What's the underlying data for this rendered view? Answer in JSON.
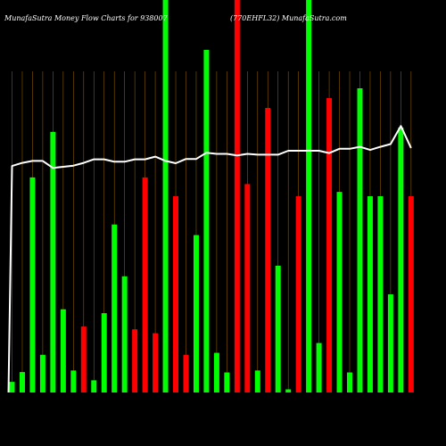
{
  "header": {
    "title_left": "MunafaSutra  Money Flow  Charts for 938007",
    "title_right": "(770EHFL32) MunafaSutra.com"
  },
  "colors": {
    "background": "#000000",
    "grid": "#8a5a00",
    "up": "#00ff00",
    "down": "#ff0000",
    "line": "#ffffff"
  },
  "chart_data": {
    "type": "bar",
    "title": "MunafaSutra  Money Flow  Charts for 938007",
    "ylim": [
      0,
      100
    ],
    "grid": true,
    "categories": [
      "",
      "",
      "",
      "",
      "",
      "",
      "",
      "",
      "",
      "",
      "",
      "",
      "",
      "",
      "",
      "",
      "",
      "",
      "",
      "",
      "",
      "",
      "",
      "",
      "",
      "",
      "",
      "",
      "",
      "",
      "",
      "",
      "",
      "",
      "",
      "",
      "",
      "",
      "",
      ""
    ],
    "bars": [
      {
        "value": 2.7,
        "color": "up"
      },
      {
        "value": 5.2,
        "color": "up"
      },
      {
        "value": 54.8,
        "color": "up"
      },
      {
        "value": 9.6,
        "color": "up"
      },
      {
        "value": 66.4,
        "color": "up"
      },
      {
        "value": 21.2,
        "color": "up"
      },
      {
        "value": 5.6,
        "color": "up"
      },
      {
        "value": 16.8,
        "color": "down"
      },
      {
        "value": 3.1,
        "color": "up"
      },
      {
        "value": 20.2,
        "color": "up"
      },
      {
        "value": 42.8,
        "color": "up"
      },
      {
        "value": 29.6,
        "color": "up"
      },
      {
        "value": 16.1,
        "color": "down"
      },
      {
        "value": 54.8,
        "color": "down"
      },
      {
        "value": 15.1,
        "color": "down"
      },
      {
        "value": 100,
        "color": "up"
      },
      {
        "value": 50.0,
        "color": "down"
      },
      {
        "value": 9.6,
        "color": "down"
      },
      {
        "value": 40.1,
        "color": "up"
      },
      {
        "value": 87.3,
        "color": "up"
      },
      {
        "value": 10.1,
        "color": "up"
      },
      {
        "value": 5.1,
        "color": "up"
      },
      {
        "value": 100,
        "color": "down"
      },
      {
        "value": 53.1,
        "color": "down"
      },
      {
        "value": 5.6,
        "color": "up"
      },
      {
        "value": 72.5,
        "color": "down"
      },
      {
        "value": 32.3,
        "color": "up"
      },
      {
        "value": 0.8,
        "color": "up"
      },
      {
        "value": 50.0,
        "color": "down"
      },
      {
        "value": 100,
        "color": "up"
      },
      {
        "value": 12.6,
        "color": "up"
      },
      {
        "value": 75.0,
        "color": "down"
      },
      {
        "value": 51.1,
        "color": "up"
      },
      {
        "value": 5.1,
        "color": "up"
      },
      {
        "value": 77.5,
        "color": "up"
      },
      {
        "value": 50.0,
        "color": "up"
      },
      {
        "value": 50.0,
        "color": "up"
      },
      {
        "value": 25.0,
        "color": "up"
      },
      {
        "value": 67.5,
        "color": "up"
      },
      {
        "value": 50.0,
        "color": "down"
      }
    ],
    "line": [
      57.7,
      58.5,
      59.0,
      59.0,
      57.2,
      57.5,
      57.8,
      58.5,
      59.4,
      59.4,
      58.8,
      58.8,
      59.4,
      59.4,
      60.1,
      59.0,
      58.4,
      59.5,
      59.5,
      61.1,
      60.8,
      60.8,
      60.4,
      60.8,
      60.6,
      60.6,
      60.6,
      61.6,
      61.6,
      61.6,
      61.6,
      61.0,
      62.1,
      62.1,
      62.6,
      61.8,
      62.6,
      63.3,
      67.9,
      62.3
    ]
  }
}
